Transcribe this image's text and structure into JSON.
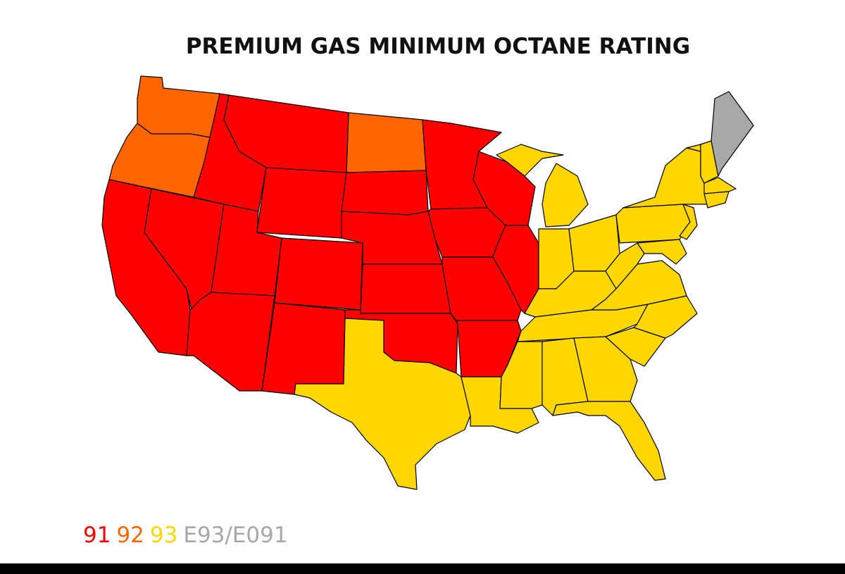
{
  "header": {
    "title": "PREMIUM GAS MINIMUM OCTANE RATING"
  },
  "legend": {
    "items": [
      {
        "label": "91",
        "color": "#ff0000"
      },
      {
        "label": "92",
        "color": "#ff6600"
      },
      {
        "label": "93",
        "color": "#ffd700"
      },
      {
        "label": "E93/E091",
        "color": "#a8a8a8"
      }
    ]
  }
}
